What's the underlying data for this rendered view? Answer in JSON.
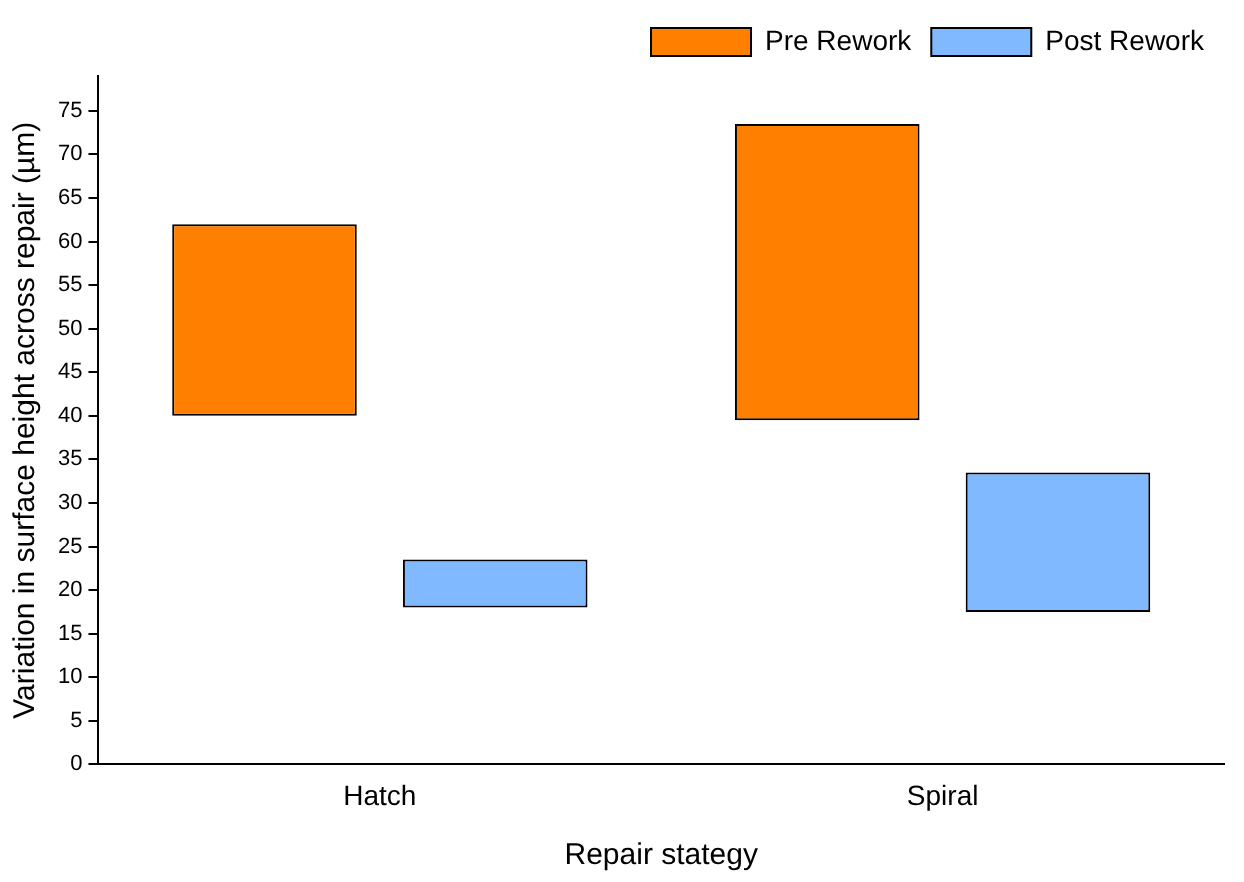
{
  "chart_data": {
    "type": "bar",
    "xlabel": "Repair stategy",
    "ylabel": "Variation in surface height across repair (µm)",
    "categories": [
      "Hatch",
      "Spiral"
    ],
    "series": [
      {
        "name": "Pre Rework",
        "color": "#ff8000",
        "base": [
          40,
          39.5
        ],
        "values": [
          22,
          34
        ]
      },
      {
        "name": "Post Rework",
        "color": "#80b9ff",
        "base": [
          18,
          17.5
        ],
        "values": [
          5.5,
          16
        ]
      }
    ],
    "ylim": [
      0,
      79
    ],
    "yticks": [
      0,
      5,
      10,
      15,
      20,
      25,
      30,
      35,
      40,
      45,
      50,
      55,
      60,
      65,
      70,
      75
    ],
    "grid": false,
    "legend": "top right"
  }
}
